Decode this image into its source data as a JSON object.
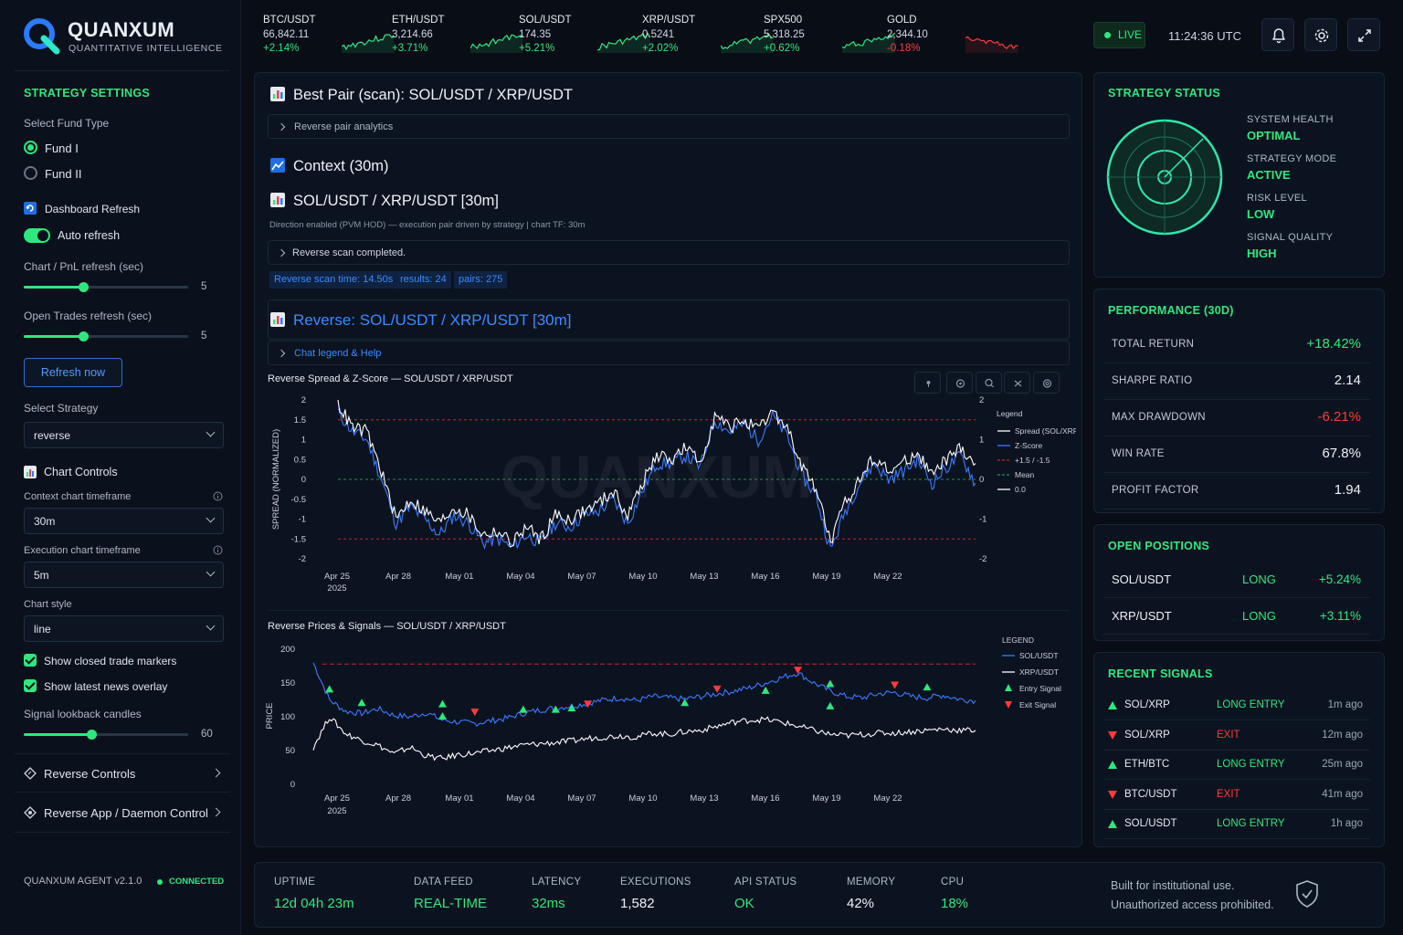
{
  "brand": {
    "name": "QUANXUM",
    "tagline": "QUANTITATIVE INTELLIGENCE"
  },
  "tickers": [
    {
      "symbol": "BTC/USDT",
      "price": "66,842.11",
      "change": "+2.14%",
      "direction": "up"
    },
    {
      "symbol": "ETH/USDT",
      "price": "3,214.66",
      "change": "+3.71%",
      "direction": "up"
    },
    {
      "symbol": "SOL/USDT",
      "price": "174.35",
      "change": "+5.21%",
      "direction": "up"
    },
    {
      "symbol": "XRP/USDT",
      "price": "0.5241",
      "change": "+2.02%",
      "direction": "up"
    },
    {
      "symbol": "SPX500",
      "price": "5,318.25",
      "change": "+0.62%",
      "direction": "up"
    },
    {
      "symbol": "GOLD",
      "price": "2,344.10",
      "change": "-0.18%",
      "direction": "down"
    }
  ],
  "header": {
    "live_label": "LIVE",
    "clock": "11:24:36 UTC",
    "icons": [
      "bell-icon",
      "gear-icon",
      "expand-icon"
    ]
  },
  "sidebar": {
    "heading": "STRATEGY SETTINGS",
    "fund_type_label": "Select Fund Type",
    "funds": [
      {
        "label": "Fund I",
        "selected": true
      },
      {
        "label": "Fund II",
        "selected": false
      }
    ],
    "dashboard_refresh_label": "Dashboard Refresh",
    "auto_refresh_label": "Auto refresh",
    "auto_refresh_on": true,
    "chart_refresh_label": "Chart / PnL refresh (sec)",
    "chart_refresh_value": "5",
    "chart_refresh_fraction": 0.36,
    "trades_refresh_label": "Open Trades refresh (sec)",
    "trades_refresh_value": "5",
    "trades_refresh_fraction": 0.36,
    "refresh_button": "Refresh now",
    "strategy_label": "Select Strategy",
    "strategy_value": "reverse",
    "chart_controls_label": "Chart Controls",
    "context_tf_label": "Context chart timeframe",
    "context_tf_value": "30m",
    "exec_tf_label": "Execution chart timeframe",
    "exec_tf_value": "5m",
    "chart_style_label": "Chart style",
    "chart_style_value": "line",
    "show_closed_label": "Show closed trade markers",
    "show_news_label": "Show latest news overlay",
    "lookback_label": "Signal lookback candles",
    "lookback_value": "60",
    "lookback_fraction": 0.41,
    "reverse_controls_label": "Reverse Controls",
    "daemon_label": "Reverse App / Daemon Control",
    "agent_version": "QUANXUM AGENT v2.1.0",
    "connection": "CONNECTED"
  },
  "main": {
    "best_pair_title": "Best Pair (scan): SOL/USDT / XRP/USDT",
    "reverse_analytics": "Reverse pair analytics",
    "context_title": "Context (30m)",
    "pair_title": "SOL/USDT / XRP/USDT [30m]",
    "pair_caption": "Direction enabled (PVM HOD) — execution pair driven by strategy | chart TF: 30m",
    "scan_done": "Reverse scan completed.",
    "chips": [
      "Reverse scan time: 14.50s",
      "results: 24",
      "pairs: 275"
    ],
    "reverse_title": "Reverse: SOL/USDT / XRP/USDT [30m]",
    "chart_legend_help": "Chat legend & Help",
    "watermark": "QUANXUM"
  },
  "chart_data": [
    {
      "type": "line",
      "title": "Reverse Spread & Z-Score — SOL/USDT / XRP/USDT",
      "ylabel": "SPREAD (NORMALIZED)",
      "ylim": [
        -2,
        2
      ],
      "yticks": [
        "2",
        "1.5",
        "1",
        "0.5",
        "0",
        "-0.5",
        "-1",
        "-1.5",
        "-2"
      ],
      "right_ticks": [
        "2",
        "1",
        "0",
        "-1",
        "-2"
      ],
      "x_labels": [
        "Apr 25",
        "Apr 28",
        "May 01",
        "May 04",
        "May 07",
        "May 10",
        "May 13",
        "May 16",
        "May 19",
        "May 22"
      ],
      "x_year": "2025",
      "legend_title": "Legend",
      "legend": [
        "Spread (SOL/XRP)",
        "Z-Score",
        "+1.5 / -1.5",
        "Mean",
        "0.0"
      ],
      "thresholds": [
        1.5,
        -1.5
      ],
      "series": [
        {
          "name": "Spread (SOL/XRP)",
          "color": "#ffffff",
          "values": [
            1.9,
            1.3,
            1.2,
            0.2,
            -1.0,
            -0.5,
            -0.8,
            -1.1,
            -0.7,
            -0.9,
            -1.4,
            -1.3,
            -1.6,
            -1.2,
            -1.5,
            -0.9,
            -1.0,
            -0.8,
            -0.6,
            -0.3,
            -0.9,
            -0.1,
            0.6,
            0.5,
            0.8,
            0.4,
            1.6,
            1.3,
            1.5,
            1.2,
            1.7,
            1.3,
            0.3,
            -0.2,
            -1.6,
            -0.6,
            0.0,
            0.6,
            0.2,
            0.4,
            0.7,
            0.1,
            0.5,
            0.8,
            0.4
          ]
        },
        {
          "name": "Z-Score",
          "color": "#3b7bff",
          "values": [
            1.7,
            1.2,
            1.0,
            0.0,
            -1.1,
            -0.7,
            -1.0,
            -1.4,
            -0.9,
            -1.1,
            -1.6,
            -1.5,
            -1.7,
            -1.4,
            -1.6,
            -1.1,
            -1.2,
            -0.9,
            -0.8,
            -0.5,
            -1.1,
            -0.3,
            0.4,
            0.4,
            0.6,
            0.3,
            1.5,
            1.2,
            1.4,
            1.0,
            1.6,
            1.1,
            0.1,
            -0.4,
            -1.8,
            -0.8,
            -0.1,
            0.4,
            0.0,
            0.2,
            0.5,
            -0.1,
            0.3,
            0.6,
            -0.1
          ]
        }
      ]
    },
    {
      "type": "line",
      "title": "Reverse Prices & Signals — SOL/USDT / XRP/USDT",
      "ylabel": "PRICE",
      "ylim": [
        0,
        200
      ],
      "yticks": [
        "200",
        "150",
        "100",
        "50",
        "0"
      ],
      "x_labels": [
        "Apr 25",
        "Apr 28",
        "May 01",
        "May 04",
        "May 07",
        "May 10",
        "May 13",
        "May 16",
        "May 19",
        "May 22"
      ],
      "x_year": "2025",
      "legend_title": "LEGEND",
      "legend": [
        "SOL/USDT",
        "XRP/USDT",
        "Entry Signal",
        "Exit Signal"
      ],
      "threshold": 178,
      "series": [
        {
          "name": "SOL/USDT",
          "color": "#3b7bff",
          "values": [
            180,
            125,
            108,
            105,
            112,
            102,
            100,
            106,
            95,
            92,
            90,
            94,
            98,
            105,
            110,
            113,
            116,
            120,
            125,
            128,
            124,
            130,
            128,
            126,
            130,
            134,
            138,
            143,
            150,
            158,
            165,
            150,
            138,
            130,
            128,
            134,
            136,
            130,
            128,
            132,
            126,
            124
          ]
        },
        {
          "name": "XRP/USDT",
          "color": "#ffffff",
          "values": [
            55,
            100,
            75,
            65,
            58,
            45,
            55,
            42,
            38,
            44,
            46,
            50,
            54,
            58,
            60,
            62,
            64,
            68,
            70,
            72,
            70,
            76,
            74,
            78,
            80,
            86,
            92,
            95,
            96,
            92,
            86,
            80,
            74,
            72,
            74,
            76,
            76,
            78,
            80,
            82,
            80,
            80
          ]
        }
      ],
      "entry_signals": [
        [
          1,
          140
        ],
        [
          3,
          120
        ],
        [
          8,
          118
        ],
        [
          8,
          100
        ],
        [
          13,
          110
        ],
        [
          15,
          110
        ],
        [
          16,
          112
        ],
        [
          23,
          120
        ],
        [
          28,
          138
        ],
        [
          32,
          148
        ],
        [
          32,
          115
        ],
        [
          38,
          143
        ]
      ],
      "exit_signals": [
        [
          10,
          108
        ],
        [
          17,
          120
        ],
        [
          25,
          142
        ],
        [
          30,
          170
        ],
        [
          36,
          148
        ]
      ]
    }
  ],
  "status": {
    "heading": "STRATEGY STATUS",
    "items": [
      {
        "label": "SYSTEM HEALTH",
        "value": "OPTIMAL"
      },
      {
        "label": "STRATEGY MODE",
        "value": "ACTIVE"
      },
      {
        "label": "RISK LEVEL",
        "value": "LOW"
      },
      {
        "label": "SIGNAL QUALITY",
        "value": "HIGH"
      }
    ]
  },
  "performance": {
    "heading": "PERFORMANCE (30D)",
    "rows": [
      {
        "label": "TOTAL RETURN",
        "value": "+18.42%",
        "tone": "green"
      },
      {
        "label": "SHARPE RATIO",
        "value": "2.14",
        "tone": "white"
      },
      {
        "label": "MAX DRAWDOWN",
        "value": "-6.21%",
        "tone": "red"
      },
      {
        "label": "WIN RATE",
        "value": "67.8%",
        "tone": "white"
      },
      {
        "label": "PROFIT FACTOR",
        "value": "1.94",
        "tone": "white"
      }
    ]
  },
  "positions": {
    "heading": "OPEN POSITIONS",
    "rows": [
      {
        "pair": "SOL/USDT",
        "side": "LONG",
        "pnl": "+5.24%"
      },
      {
        "pair": "XRP/USDT",
        "side": "LONG",
        "pnl": "+3.11%"
      }
    ]
  },
  "signals": {
    "heading": "RECENT SIGNALS",
    "rows": [
      {
        "pair": "SOL/XRP",
        "type": "LONG ENTRY",
        "time": "1m ago",
        "dir": "up"
      },
      {
        "pair": "SOL/XRP",
        "type": "EXIT",
        "time": "12m ago",
        "dir": "down"
      },
      {
        "pair": "ETH/BTC",
        "type": "LONG ENTRY",
        "time": "25m ago",
        "dir": "up"
      },
      {
        "pair": "BTC/USDT",
        "type": "EXIT",
        "time": "41m ago",
        "dir": "down"
      },
      {
        "pair": "SOL/USDT",
        "type": "LONG ENTRY",
        "time": "1h ago",
        "dir": "up"
      }
    ]
  },
  "footer": {
    "stats": [
      {
        "label": "UPTIME",
        "value": "12d 04h 23m",
        "tone": "green"
      },
      {
        "label": "DATA FEED",
        "value": "REAL-TIME",
        "tone": "green"
      },
      {
        "label": "LATENCY",
        "value": "32ms",
        "tone": "green"
      },
      {
        "label": "EXECUTIONS",
        "value": "1,582",
        "tone": "white"
      },
      {
        "label": "API STATUS",
        "value": "OK",
        "tone": "green"
      },
      {
        "label": "MEMORY",
        "value": "42%",
        "tone": "white"
      },
      {
        "label": "CPU",
        "value": "18%",
        "tone": "green"
      }
    ],
    "notice_1": "Built for institutional use.",
    "notice_2": "Unauthorized access prohibited."
  }
}
